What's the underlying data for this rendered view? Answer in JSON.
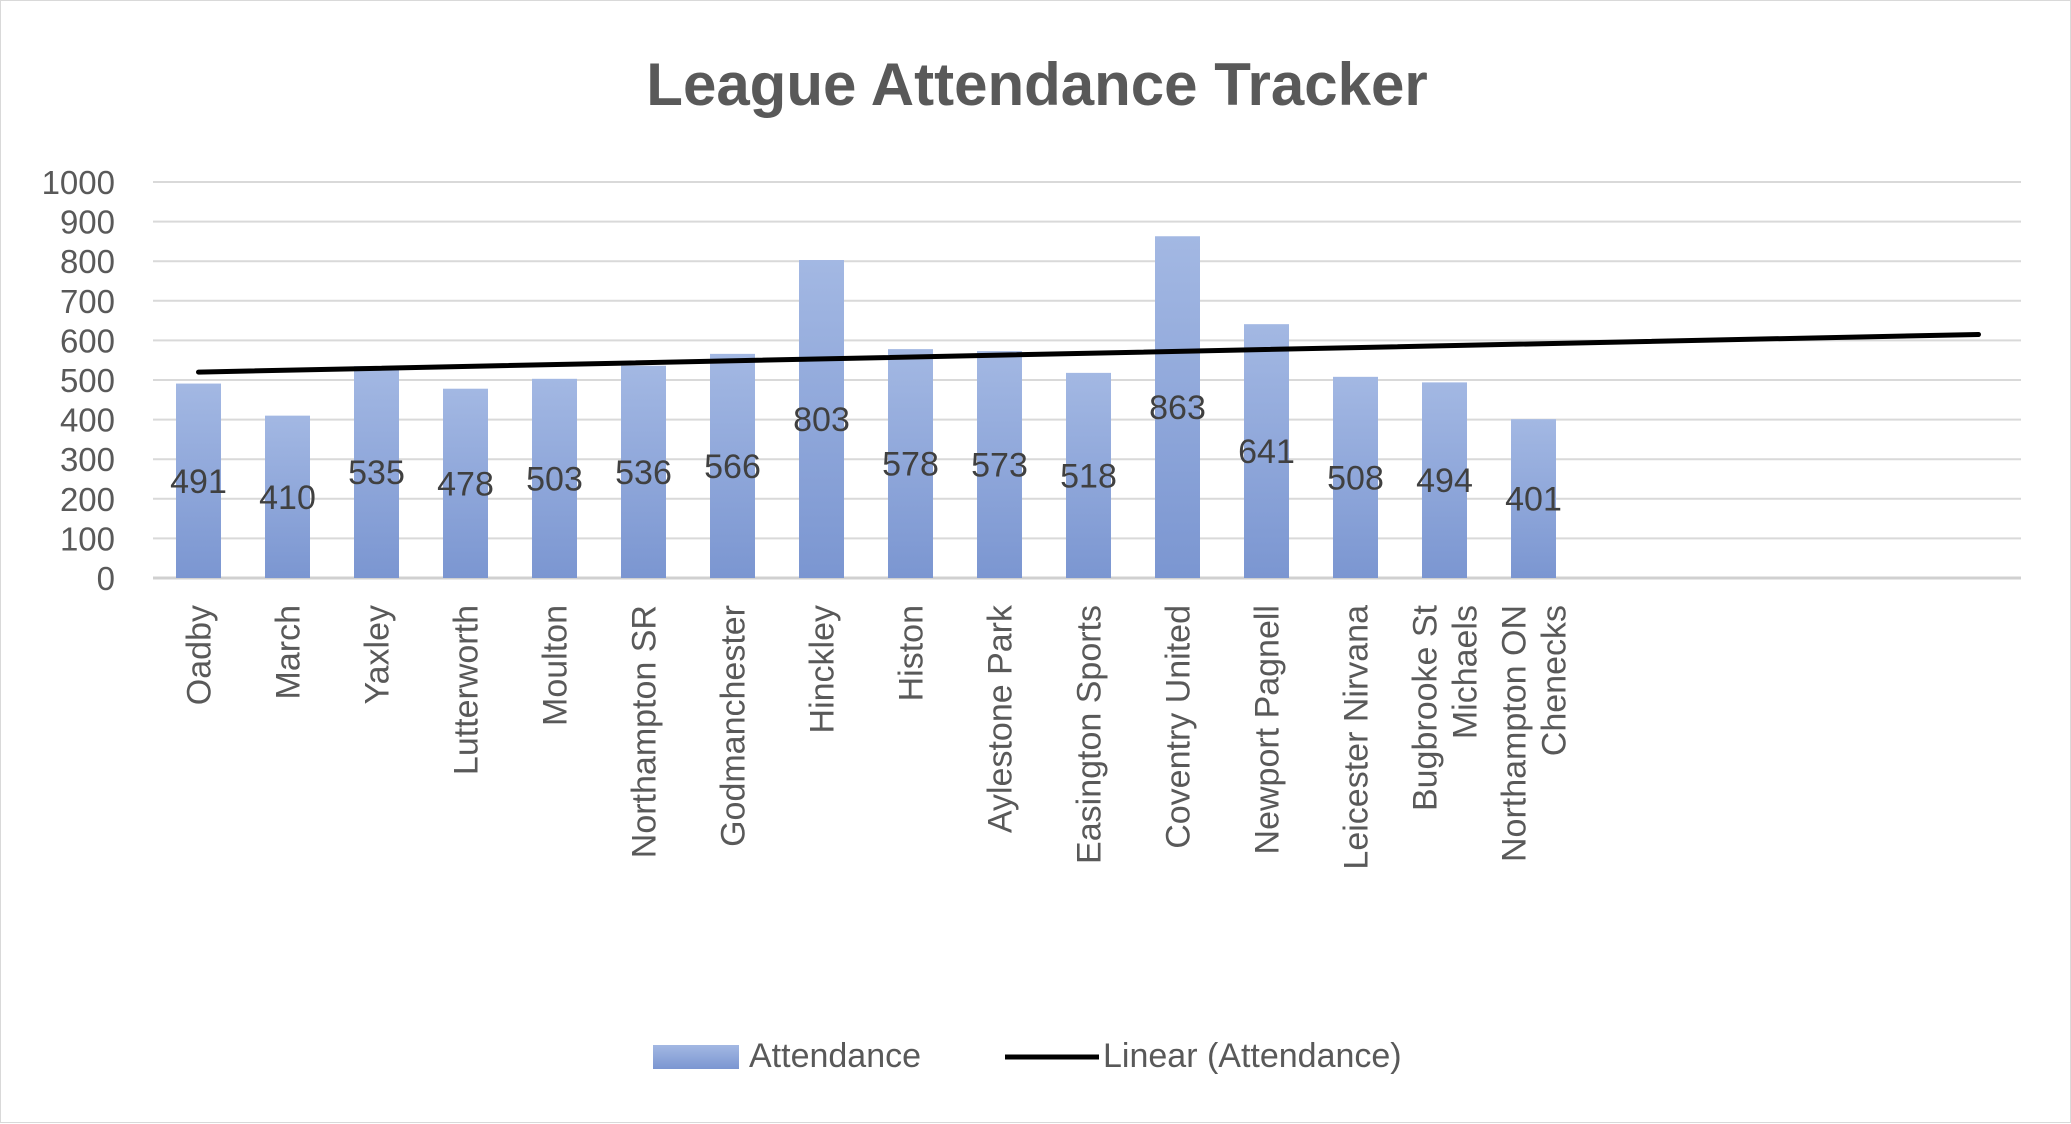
{
  "chart_data": {
    "type": "bar",
    "title": "League Attendance Tracker",
    "categories": [
      "Oadby",
      "March",
      "Yaxley",
      "Lutterworth",
      "Moulton",
      "Northampton SR",
      "Godmanchester",
      "Hinckley",
      "Histon",
      "Aylestone Park",
      "Easington Sports",
      "Coventry United",
      "Newport Pagnell",
      "Leicester Nirvana",
      "Bugbrooke St Michaels",
      "Northampton ON Chenecks"
    ],
    "series": [
      {
        "name": "Attendance",
        "values": [
          491,
          410,
          535,
          478,
          503,
          536,
          566,
          803,
          578,
          573,
          518,
          863,
          641,
          508,
          494,
          401
        ],
        "color": "#8faadc"
      }
    ],
    "trendline": {
      "name": "Linear (Attendance)",
      "kind": "linear",
      "color": "#000000",
      "start_value": 520,
      "end_value": 615,
      "extends_categories": 21
    },
    "ylim": [
      0,
      1000
    ],
    "yticks": [
      0,
      100,
      200,
      300,
      400,
      500,
      600,
      700,
      800,
      900,
      1000
    ],
    "grid": true,
    "legend_position": "bottom",
    "data_labels": true,
    "xlabel": "",
    "ylabel": ""
  }
}
